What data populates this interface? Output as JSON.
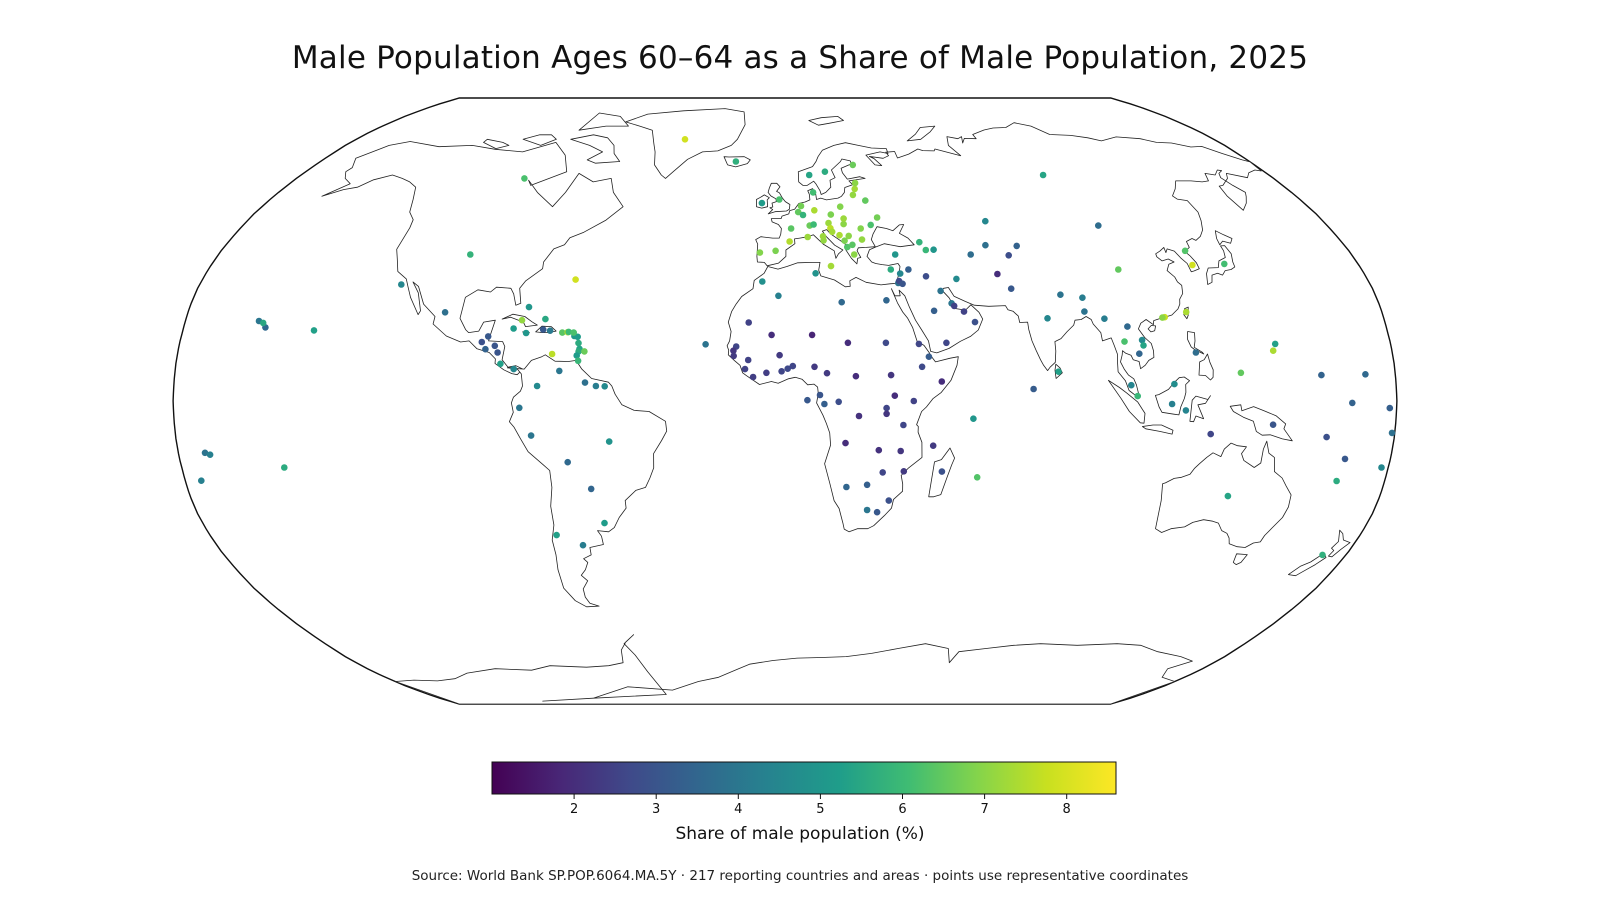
{
  "title": "Male Population Ages 60–64 as a Share of Male Population, 2025",
  "colorbar": {
    "label": "Share of male population (%)",
    "min": 1.0,
    "max": 8.6,
    "ticks": [
      "2",
      "3",
      "4",
      "5",
      "6",
      "7",
      "8"
    ],
    "tick_values": [
      2,
      3,
      4,
      5,
      6,
      7,
      8
    ],
    "colormap": "viridis",
    "stops": [
      "#440154",
      "#482777",
      "#3f4a8a",
      "#31678e",
      "#26838f",
      "#1f9d8a",
      "#3fbc73",
      "#84d44b",
      "#c8e020",
      "#fde725"
    ]
  },
  "source": "Source: World Bank SP.POP.6064.MA.5Y · 217 reporting countries and areas · points use representative coordinates",
  "chart_data": {
    "type": "scatter",
    "projection": "robinson",
    "value_unit": "%",
    "points": [
      {
        "lon": -42,
        "lat": 72,
        "v": 7.9
      },
      {
        "lon": -19,
        "lat": 65,
        "v": 5.7
      },
      {
        "lon": -8,
        "lat": 53,
        "v": 5.2
      },
      {
        "lon": -2,
        "lat": 54,
        "v": 6.2
      },
      {
        "lon": -3,
        "lat": 40,
        "v": 6.8
      },
      {
        "lon": -8,
        "lat": 39.5,
        "v": 6.9
      },
      {
        "lon": 2,
        "lat": 46,
        "v": 6.4
      },
      {
        "lon": 4.5,
        "lat": 50.5,
        "v": 6.5
      },
      {
        "lon": 5.5,
        "lat": 52.2,
        "v": 6.7
      },
      {
        "lon": 10,
        "lat": 51,
        "v": 7.4
      },
      {
        "lon": 8.2,
        "lat": 46.8,
        "v": 6.6
      },
      {
        "lon": 12.5,
        "lat": 42.8,
        "v": 7.1
      },
      {
        "lon": 14.5,
        "lat": 47.5,
        "v": 7.2
      },
      {
        "lon": 15.5,
        "lat": 49.8,
        "v": 6.8
      },
      {
        "lon": 19,
        "lat": 52,
        "v": 6.9
      },
      {
        "lon": 19.5,
        "lat": 47.2,
        "v": 7.0
      },
      {
        "lon": 19.7,
        "lat": 48.7,
        "v": 7.2
      },
      {
        "lon": 15,
        "lat": 46.1,
        "v": 7.6
      },
      {
        "lon": 15.5,
        "lat": 45.1,
        "v": 7.3
      },
      {
        "lon": 17.8,
        "lat": 44.2,
        "v": 7.4
      },
      {
        "lon": 20.8,
        "lat": 44,
        "v": 7.0
      },
      {
        "lon": 19.3,
        "lat": 42.7,
        "v": 6.8
      },
      {
        "lon": 20,
        "lat": 41,
        "v": 6.3
      },
      {
        "lon": 21.7,
        "lat": 41.6,
        "v": 6.4
      },
      {
        "lon": 25,
        "lat": 43,
        "v": 7.1
      },
      {
        "lon": 25,
        "lat": 46,
        "v": 6.9
      },
      {
        "lon": 22,
        "lat": 39,
        "v": 7.0
      },
      {
        "lon": 28.5,
        "lat": 47,
        "v": 6.2
      },
      {
        "lon": 31,
        "lat": 49,
        "v": 6.7
      },
      {
        "lon": 28,
        "lat": 53.7,
        "v": 6.5
      },
      {
        "lon": 24,
        "lat": 55.3,
        "v": 7.1
      },
      {
        "lon": 25,
        "lat": 57,
        "v": 7.3
      },
      {
        "lon": 25.5,
        "lat": 58.7,
        "v": 7.0
      },
      {
        "lon": 26,
        "lat": 64,
        "v": 6.6
      },
      {
        "lon": 15,
        "lat": 62,
        "v": 5.6
      },
      {
        "lon": 9,
        "lat": 61,
        "v": 5.4
      },
      {
        "lon": 10,
        "lat": 56,
        "v": 6.1
      },
      {
        "lon": 9.5,
        "lat": 47.1,
        "v": 6.0
      },
      {
        "lon": 6.1,
        "lat": 49.7,
        "v": 5.8
      },
      {
        "lon": 14.4,
        "lat": 35.9,
        "v": 7.3
      },
      {
        "lon": 12.4,
        "lat": 43.9,
        "v": 7.2
      },
      {
        "lon": 7.4,
        "lat": 43.7,
        "v": 7.2
      },
      {
        "lon": 1.5,
        "lat": 42.5,
        "v": 7.5
      },
      {
        "lon": 33,
        "lat": 35,
        "v": 5.6
      },
      {
        "lon": 35,
        "lat": 39,
        "v": 5.0
      },
      {
        "lon": 43.4,
        "lat": 42.3,
        "v": 5.8
      },
      {
        "lon": 45,
        "lat": 40.2,
        "v": 5.9
      },
      {
        "lon": 47.5,
        "lat": 40.3,
        "v": 5.0
      },
      {
        "lon": 67,
        "lat": 48,
        "v": 4.5
      },
      {
        "lon": 64.5,
        "lat": 41.5,
        "v": 3.8
      },
      {
        "lon": 59,
        "lat": 39,
        "v": 3.7
      },
      {
        "lon": 74.5,
        "lat": 41.3,
        "v": 3.4
      },
      {
        "lon": 71,
        "lat": 38.8,
        "v": 2.8
      },
      {
        "lon": 96,
        "lat": 61,
        "v": 5.4
      },
      {
        "lon": 104,
        "lat": 46.8,
        "v": 3.7
      },
      {
        "lon": 104,
        "lat": 35,
        "v": 6.5
      },
      {
        "lon": 127.7,
        "lat": 40,
        "v": 6.3
      },
      {
        "lon": 127.8,
        "lat": 36.2,
        "v": 7.9
      },
      {
        "lon": 138,
        "lat": 36.5,
        "v": 6.1
      },
      {
        "lon": 121,
        "lat": 23.7,
        "v": 7.4
      },
      {
        "lon": 114.2,
        "lat": 22.3,
        "v": 7.8
      },
      {
        "lon": 113.5,
        "lat": 22.2,
        "v": 7.0
      },
      {
        "lon": 53,
        "lat": 32.5,
        "v": 4.6
      },
      {
        "lon": 43.7,
        "lat": 33.2,
        "v": 2.8
      },
      {
        "lon": 38.5,
        "lat": 35,
        "v": 3.3
      },
      {
        "lon": 35.8,
        "lat": 33.9,
        "v": 4.5
      },
      {
        "lon": 34.9,
        "lat": 31.4,
        "v": 3.9
      },
      {
        "lon": 35.2,
        "lat": 31.9,
        "v": 2.7
      },
      {
        "lon": 36.2,
        "lat": 31.2,
        "v": 3.0
      },
      {
        "lon": 45,
        "lat": 24,
        "v": 3.3
      },
      {
        "lon": 47.6,
        "lat": 29.3,
        "v": 3.9
      },
      {
        "lon": 50.5,
        "lat": 26,
        "v": 4.0
      },
      {
        "lon": 51.2,
        "lat": 25.3,
        "v": 2.5
      },
      {
        "lon": 54,
        "lat": 23.8,
        "v": 2.5
      },
      {
        "lon": 57,
        "lat": 21,
        "v": 2.9
      },
      {
        "lon": 48,
        "lat": 15.5,
        "v": 2.6
      },
      {
        "lon": 66,
        "lat": 33.8,
        "v": 2.0
      },
      {
        "lon": 69.3,
        "lat": 29.9,
        "v": 3.1
      },
      {
        "lon": 78.9,
        "lat": 22,
        "v": 4.5
      },
      {
        "lon": 84,
        "lat": 28.3,
        "v": 3.9
      },
      {
        "lon": 90.5,
        "lat": 27.5,
        "v": 4.2
      },
      {
        "lon": 90.3,
        "lat": 23.8,
        "v": 3.9
      },
      {
        "lon": 80.7,
        "lat": 7.8,
        "v": 5.3
      },
      {
        "lon": 73.2,
        "lat": 3.2,
        "v": 3.2
      },
      {
        "lon": 96,
        "lat": 21.9,
        "v": 4.2
      },
      {
        "lon": 101,
        "lat": 15.8,
        "v": 6.2
      },
      {
        "lon": 102.5,
        "lat": 19.8,
        "v": 3.6
      },
      {
        "lon": 105,
        "lat": 12.6,
        "v": 3.5
      },
      {
        "lon": 106.3,
        "lat": 16.2,
        "v": 4.6
      },
      {
        "lon": 106.5,
        "lat": 14.8,
        "v": 5.4
      },
      {
        "lon": 102,
        "lat": 4.2,
        "v": 4.4
      },
      {
        "lon": 103.8,
        "lat": 1.3,
        "v": 5.9
      },
      {
        "lon": 114.7,
        "lat": 4.5,
        "v": 4.7
      },
      {
        "lon": 113.9,
        "lat": -0.8,
        "v": 4.3
      },
      {
        "lon": 121.8,
        "lat": 12.9,
        "v": 3.7
      },
      {
        "lon": 125.7,
        "lat": -8.8,
        "v": 2.6
      },
      {
        "lon": 143.9,
        "lat": -6.3,
        "v": 3.0
      },
      {
        "lon": 118,
        "lat": -2.5,
        "v": 4.4
      },
      {
        "lon": 134.5,
        "lat": 7.5,
        "v": 6.5
      },
      {
        "lon": 144.8,
        "lat": 13.4,
        "v": 7.4
      },
      {
        "lon": 145.7,
        "lat": 15.2,
        "v": 5.3
      },
      {
        "lon": 158.2,
        "lat": 6.9,
        "v": 3.4
      },
      {
        "lon": 171.2,
        "lat": 7.1,
        "v": 3.6
      },
      {
        "lon": 160,
        "lat": -9.6,
        "v": 2.9
      },
      {
        "lon": 166.9,
        "lat": -0.5,
        "v": 3.4
      },
      {
        "lon": 178,
        "lat": -1.9,
        "v": 3.3
      },
      {
        "lon": 179.2,
        "lat": -8.5,
        "v": 3.8
      },
      {
        "lon": 166.5,
        "lat": -15.4,
        "v": 3.1
      },
      {
        "lon": 165.6,
        "lat": -21.3,
        "v": 5.6
      },
      {
        "lon": 178,
        "lat": -17.7,
        "v": 4.5
      },
      {
        "lon": -172.1,
        "lat": -13.8,
        "v": 3.9
      },
      {
        "lon": -170.7,
        "lat": -14.3,
        "v": 4.3
      },
      {
        "lon": -175.2,
        "lat": -21.2,
        "v": 4.3
      },
      {
        "lon": -149.4,
        "lat": -17.7,
        "v": 5.6
      },
      {
        "lon": 134,
        "lat": -25.3,
        "v": 5.4
      },
      {
        "lon": 172.5,
        "lat": -41,
        "v": 5.7
      },
      {
        "lon": -96,
        "lat": 60,
        "v": 6.2
      },
      {
        "lon": -100,
        "lat": 39,
        "v": 5.8
      },
      {
        "lon": -64.7,
        "lat": 32.3,
        "v": 7.9
      },
      {
        "lon": -102.5,
        "lat": 23.6,
        "v": 3.8
      },
      {
        "lon": -90.2,
        "lat": 15.7,
        "v": 2.9
      },
      {
        "lon": -88.9,
        "lat": 13.8,
        "v": 3.4
      },
      {
        "lon": -86.2,
        "lat": 14.7,
        "v": 3.0
      },
      {
        "lon": -85.2,
        "lat": 12.9,
        "v": 3.0
      },
      {
        "lon": -84.1,
        "lat": 9.9,
        "v": 5.3
      },
      {
        "lon": -80.1,
        "lat": 8.5,
        "v": 4.5
      },
      {
        "lon": -88.5,
        "lat": 17.2,
        "v": 3.1
      },
      {
        "lon": -79,
        "lat": 21.5,
        "v": 7.1
      },
      {
        "lon": -77.4,
        "lat": 25,
        "v": 5.0
      },
      {
        "lon": -77.3,
        "lat": 18.1,
        "v": 5.0
      },
      {
        "lon": -72.3,
        "lat": 19,
        "v": 3.1
      },
      {
        "lon": -70.2,
        "lat": 18.7,
        "v": 4.1
      },
      {
        "lon": -66.5,
        "lat": 18.2,
        "v": 6.4
      },
      {
        "lon": -64.9,
        "lat": 18.3,
        "v": 7.5
      },
      {
        "lon": -64.6,
        "lat": 18.4,
        "v": 6.0
      },
      {
        "lon": -62.8,
        "lat": 17.3,
        "v": 5.1
      },
      {
        "lon": -61.8,
        "lat": 17.1,
        "v": 5.2
      },
      {
        "lon": -61.4,
        "lat": 15.4,
        "v": 5.6
      },
      {
        "lon": -61,
        "lat": 13.9,
        "v": 5.4
      },
      {
        "lon": -61.2,
        "lat": 13.2,
        "v": 5.6
      },
      {
        "lon": -59.5,
        "lat": 13.2,
        "v": 6.6
      },
      {
        "lon": -61.7,
        "lat": 12.1,
        "v": 5.2
      },
      {
        "lon": -61.2,
        "lat": 10.7,
        "v": 5.9
      },
      {
        "lon": -69,
        "lat": 12.5,
        "v": 7.6
      },
      {
        "lon": -81.2,
        "lat": 19.3,
        "v": 5.2
      },
      {
        "lon": -63.1,
        "lat": 18.2,
        "v": 6.2
      },
      {
        "lon": -72,
        "lat": 21.8,
        "v": 5.5
      },
      {
        "lon": -66.6,
        "lat": 8,
        "v": 4.0
      },
      {
        "lon": -58.9,
        "lat": 4.9,
        "v": 3.8
      },
      {
        "lon": -55.7,
        "lat": 4,
        "v": 4.2
      },
      {
        "lon": -53.1,
        "lat": 3.9,
        "v": 4.6
      },
      {
        "lon": -73,
        "lat": 4,
        "v": 4.6
      },
      {
        "lon": -78.2,
        "lat": -1.8,
        "v": 4.0
      },
      {
        "lon": -75,
        "lat": -9.2,
        "v": 4.0
      },
      {
        "lon": -52,
        "lat": -10.8,
        "v": 4.9
      },
      {
        "lon": -64.7,
        "lat": -16.3,
        "v": 3.6
      },
      {
        "lon": -58.4,
        "lat": -23.4,
        "v": 3.5
      },
      {
        "lon": -71.5,
        "lat": -35.7,
        "v": 5.3
      },
      {
        "lon": -64,
        "lat": -38.4,
        "v": 4.2
      },
      {
        "lon": -55.8,
        "lat": -32.5,
        "v": 5.2
      },
      {
        "lon": -2,
        "lat": 28,
        "v": 4.3
      },
      {
        "lon": -7,
        "lat": 31.8,
        "v": 4.8
      },
      {
        "lon": 9.5,
        "lat": 34,
        "v": 4.9
      },
      {
        "lon": 17.2,
        "lat": 26.3,
        "v": 3.6
      },
      {
        "lon": 30.8,
        "lat": 26.8,
        "v": 3.5
      },
      {
        "lon": 30,
        "lat": 15.5,
        "v": 2.7
      },
      {
        "lon": -10.9,
        "lat": 20.9,
        "v": 2.5
      },
      {
        "lon": -4,
        "lat": 17.6,
        "v": 2.0
      },
      {
        "lon": 8.1,
        "lat": 17.6,
        "v": 1.8
      },
      {
        "lon": 18.7,
        "lat": 15.5,
        "v": 2.0
      },
      {
        "lon": -14.5,
        "lat": 14.5,
        "v": 2.6
      },
      {
        "lon": -15.3,
        "lat": 13.4,
        "v": 2.2
      },
      {
        "lon": -15.2,
        "lat": 12,
        "v": 2.3
      },
      {
        "lon": -10.9,
        "lat": 10.9,
        "v": 2.5
      },
      {
        "lon": -11.8,
        "lat": 8.5,
        "v": 2.5
      },
      {
        "lon": -9.4,
        "lat": 6.4,
        "v": 2.4
      },
      {
        "lon": -5.5,
        "lat": 7.5,
        "v": 2.4
      },
      {
        "lon": -1.6,
        "lat": 12.2,
        "v": 2.3
      },
      {
        "lon": -1,
        "lat": 7.9,
        "v": 2.6
      },
      {
        "lon": 0.8,
        "lat": 8.6,
        "v": 2.7
      },
      {
        "lon": 2.3,
        "lat": 9.3,
        "v": 2.6
      },
      {
        "lon": 8.7,
        "lat": 9.1,
        "v": 2.3
      },
      {
        "lon": 12.4,
        "lat": 7.4,
        "v": 2.3
      },
      {
        "lon": 20.9,
        "lat": 6.6,
        "v": 2.0
      },
      {
        "lon": 31.3,
        "lat": 6.9,
        "v": 2.2
      },
      {
        "lon": 40.5,
        "lat": 9.1,
        "v": 2.7
      },
      {
        "lon": 39.8,
        "lat": 15.2,
        "v": 2.6
      },
      {
        "lon": 42.6,
        "lat": 11.8,
        "v": 3.2
      },
      {
        "lon": 46.2,
        "lat": 5.2,
        "v": 2.0
      },
      {
        "lon": 37.9,
        "lat": 0,
        "v": 2.5
      },
      {
        "lon": 32.3,
        "lat": 1.4,
        "v": 2.0
      },
      {
        "lon": 29.9,
        "lat": -1.9,
        "v": 2.6
      },
      {
        "lon": 29.9,
        "lat": -3.4,
        "v": 2.2
      },
      {
        "lon": 34.9,
        "lat": -6.4,
        "v": 2.6
      },
      {
        "lon": 10.3,
        "lat": 1.6,
        "v": 3.0
      },
      {
        "lon": 11.6,
        "lat": -0.8,
        "v": 3.3
      },
      {
        "lon": 15.8,
        "lat": -0.2,
        "v": 2.8
      },
      {
        "lon": 21.8,
        "lat": -4,
        "v": 2.1
      },
      {
        "lon": 17.9,
        "lat": -11.2,
        "v": 2.0
      },
      {
        "lon": 27.8,
        "lat": -13.1,
        "v": 2.1
      },
      {
        "lon": 34.3,
        "lat": -13.3,
        "v": 2.2
      },
      {
        "lon": 35.5,
        "lat": -18.7,
        "v": 2.3
      },
      {
        "lon": 29.2,
        "lat": -19,
        "v": 2.6
      },
      {
        "lon": 24.7,
        "lat": -22.3,
        "v": 3.3
      },
      {
        "lon": 18.5,
        "lat": -22.9,
        "v": 3.5
      },
      {
        "lon": 25.1,
        "lat": -29,
        "v": 4.0
      },
      {
        "lon": 31.5,
        "lat": -26.5,
        "v": 2.9
      },
      {
        "lon": 28.2,
        "lat": -29.6,
        "v": 3.1
      },
      {
        "lon": 46.9,
        "lat": -18.8,
        "v": 2.9
      },
      {
        "lon": 43.9,
        "lat": -11.9,
        "v": 2.3
      },
      {
        "lon": 55.5,
        "lat": -4.7,
        "v": 5.0
      },
      {
        "lon": 57.6,
        "lat": -20.3,
        "v": 6.3
      },
      {
        "lon": 6.6,
        "lat": 0.2,
        "v": 3.1
      },
      {
        "lon": -23.6,
        "lat": 15.1,
        "v": 3.9
      },
      {
        "lon": -155.5,
        "lat": 19.6,
        "v": 3.6
      },
      {
        "lon": -157.9,
        "lat": 21.3,
        "v": 4.0
      },
      {
        "lon": -156.5,
        "lat": 20.8,
        "v": 5.5
      },
      {
        "lon": -140.8,
        "lat": 18.8,
        "v": 5.3
      },
      {
        "lon": -118,
        "lat": 31,
        "v": 4.5
      }
    ]
  }
}
